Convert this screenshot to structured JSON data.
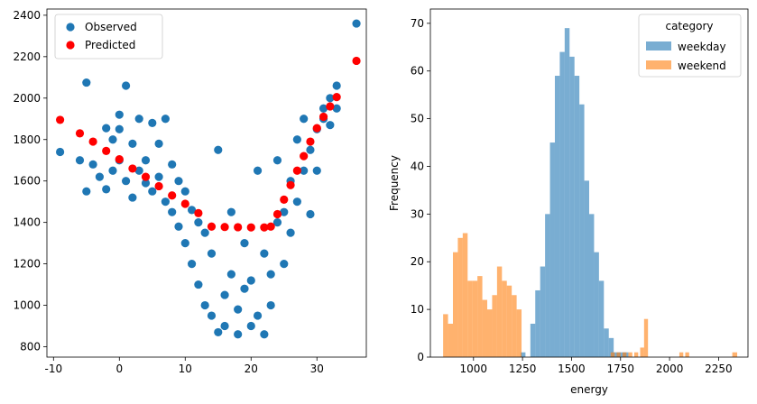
{
  "chart_data": [
    {
      "type": "scatter",
      "xlim": [
        -11,
        37.5
      ],
      "ylim": [
        750,
        2430
      ],
      "xticks": [
        -10,
        0,
        10,
        20,
        30
      ],
      "yticks": [
        800,
        1000,
        1200,
        1400,
        1600,
        1800,
        2000,
        2200,
        2400
      ],
      "xlabel": "",
      "ylabel": "",
      "legend": {
        "placement": "upper-left",
        "entries": [
          "Observed",
          "Predicted"
        ]
      },
      "series": [
        {
          "name": "Observed",
          "color": "#1f77b4",
          "points": [
            [
              -9,
              1740
            ],
            [
              -6,
              1700
            ],
            [
              -5,
              2075
            ],
            [
              -5,
              1550
            ],
            [
              -4,
              1680
            ],
            [
              -3,
              1620
            ],
            [
              -2,
              1855
            ],
            [
              -2,
              1560
            ],
            [
              -1,
              1800
            ],
            [
              -1,
              1650
            ],
            [
              0,
              1700
            ],
            [
              0,
              1920
            ],
            [
              0,
              1850
            ],
            [
              1,
              2060
            ],
            [
              1,
              1600
            ],
            [
              2,
              1780
            ],
            [
              2,
              1520
            ],
            [
              3,
              1650
            ],
            [
              3,
              1900
            ],
            [
              4,
              1590
            ],
            [
              4,
              1700
            ],
            [
              5,
              1880
            ],
            [
              5,
              1550
            ],
            [
              6,
              1620
            ],
            [
              6,
              1780
            ],
            [
              7,
              1900
            ],
            [
              7,
              1500
            ],
            [
              8,
              1680
            ],
            [
              8,
              1450
            ],
            [
              9,
              1600
            ],
            [
              9,
              1380
            ],
            [
              10,
              1550
            ],
            [
              10,
              1300
            ],
            [
              11,
              1460
            ],
            [
              11,
              1200
            ],
            [
              12,
              1400
            ],
            [
              12,
              1100
            ],
            [
              13,
              1000
            ],
            [
              13,
              1350
            ],
            [
              14,
              950
            ],
            [
              14,
              1250
            ],
            [
              15,
              870
            ],
            [
              15,
              1750
            ],
            [
              16,
              1050
            ],
            [
              16,
              900
            ],
            [
              17,
              1450
            ],
            [
              17,
              1150
            ],
            [
              18,
              980
            ],
            [
              18,
              860
            ],
            [
              19,
              1300
            ],
            [
              19,
              1080
            ],
            [
              20,
              1120
            ],
            [
              20,
              900
            ],
            [
              21,
              1650
            ],
            [
              21,
              950
            ],
            [
              22,
              860
            ],
            [
              22,
              1250
            ],
            [
              23,
              1000
            ],
            [
              23,
              1150
            ],
            [
              24,
              1400
            ],
            [
              24,
              1700
            ],
            [
              25,
              1200
            ],
            [
              25,
              1450
            ],
            [
              26,
              1350
            ],
            [
              26,
              1600
            ],
            [
              27,
              1500
            ],
            [
              27,
              1800
            ],
            [
              28,
              1650
            ],
            [
              28,
              1900
            ],
            [
              29,
              1750
            ],
            [
              29,
              1440
            ],
            [
              30,
              1850
            ],
            [
              30,
              1650
            ],
            [
              31,
              1900
            ],
            [
              31,
              1950
            ],
            [
              32,
              2000
            ],
            [
              32,
              1870
            ],
            [
              33,
              2060
            ],
            [
              33,
              1950
            ],
            [
              36,
              2360
            ]
          ]
        },
        {
          "name": "Predicted",
          "color": "#ff0000",
          "points": [
            [
              -9,
              1895
            ],
            [
              -6,
              1830
            ],
            [
              -4,
              1790
            ],
            [
              -2,
              1745
            ],
            [
              0,
              1705
            ],
            [
              2,
              1660
            ],
            [
              4,
              1620
            ],
            [
              6,
              1575
            ],
            [
              8,
              1530
            ],
            [
              10,
              1490
            ],
            [
              12,
              1445
            ],
            [
              14,
              1380
            ],
            [
              16,
              1378
            ],
            [
              18,
              1377
            ],
            [
              20,
              1376
            ],
            [
              22,
              1376
            ],
            [
              23,
              1380
            ],
            [
              24,
              1440
            ],
            [
              25,
              1510
            ],
            [
              26,
              1580
            ],
            [
              27,
              1650
            ],
            [
              28,
              1720
            ],
            [
              29,
              1790
            ],
            [
              30,
              1855
            ],
            [
              31,
              1910
            ],
            [
              32,
              1960
            ],
            [
              33,
              2005
            ],
            [
              36,
              2180
            ]
          ]
        }
      ]
    },
    {
      "type": "histogram",
      "xlim": [
        780,
        2400
      ],
      "ylim": [
        0,
        73
      ],
      "xticks": [
        1000,
        1250,
        1500,
        1750,
        2000,
        2250
      ],
      "yticks": [
        0,
        10,
        20,
        30,
        40,
        50,
        60,
        70
      ],
      "xlabel": "energy",
      "ylabel": "Frequency",
      "legend": {
        "placement": "upper-right",
        "title": "category",
        "entries": [
          "weekday",
          "weekend"
        ]
      },
      "series": [
        {
          "name": "weekday",
          "color": "#1f77b4",
          "opacity": 0.6,
          "bin_start": 1240,
          "bin_width": 25,
          "counts": [
            1,
            0,
            7,
            14,
            19,
            30,
            45,
            59,
            64,
            69,
            63,
            59,
            53,
            37,
            30,
            22,
            16,
            6,
            4,
            1,
            1,
            1
          ]
        },
        {
          "name": "weekend",
          "color": "#ff7f0e",
          "opacity": 0.6,
          "bin_start": 845,
          "bin_width": 25,
          "counts": [
            9,
            7,
            22,
            25,
            26,
            16,
            16,
            17,
            12,
            10,
            13,
            19,
            16,
            15,
            13,
            10,
            0,
            0,
            0,
            0,
            0,
            0,
            0,
            0,
            0,
            0,
            0,
            0,
            0,
            0,
            0,
            0,
            0,
            0,
            0,
            0,
            0,
            0,
            0,
            0,
            0,
            0,
            0,
            0,
            0,
            0,
            0,
            0,
            0,
            0,
            0,
            0,
            0,
            0,
            0,
            0,
            0,
            0,
            0,
            1
          ],
          "extra_bins": [
            [
              1700,
              1
            ],
            [
              1730,
              1
            ],
            [
              1760,
              1
            ],
            [
              1790,
              1
            ],
            [
              1820,
              1
            ],
            [
              1850,
              2
            ],
            [
              1870,
              8
            ],
            [
              2050,
              1
            ],
            [
              2080,
              1
            ]
          ]
        }
      ]
    }
  ]
}
